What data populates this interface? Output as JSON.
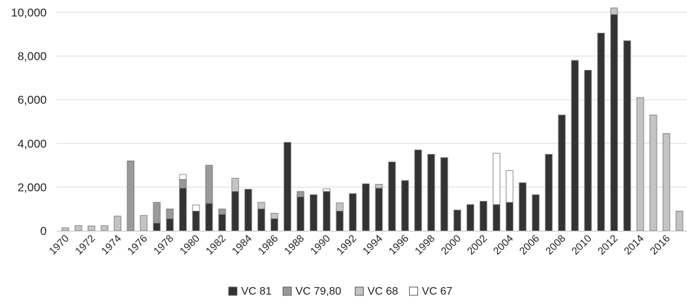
{
  "chart_data": {
    "type": "bar",
    "stacked": true,
    "title": "",
    "xlabel": "",
    "ylabel": "",
    "ylim": [
      0,
      10000
    ],
    "yticks": [
      "0",
      "2,000",
      "4,000",
      "6,000",
      "8,000",
      "10,000"
    ],
    "ytick_values": [
      0,
      2000,
      4000,
      6000,
      8000,
      10000
    ],
    "grid": "horizontal",
    "legend_position": "bottom",
    "categories": [
      1970,
      1971,
      1972,
      1973,
      1974,
      1975,
      1976,
      1977,
      1978,
      1979,
      1980,
      1981,
      1982,
      1983,
      1984,
      1985,
      1986,
      1987,
      1988,
      1989,
      1990,
      1991,
      1992,
      1993,
      1994,
      1995,
      1996,
      1997,
      1998,
      1999,
      2000,
      2001,
      2002,
      2003,
      2004,
      2005,
      2006,
      2007,
      2008,
      2009,
      2010,
      2011,
      2012,
      2013,
      2014,
      2015,
      2016,
      2017
    ],
    "xtick_labels": [
      "1970",
      "1972",
      "1974",
      "1976",
      "1978",
      "1980",
      "1982",
      "1984",
      "1986",
      "1988",
      "1990",
      "1992",
      "1994",
      "1996",
      "1998",
      "2000",
      "2002",
      "2004",
      "2006",
      "2008",
      "2010",
      "2012",
      "2014",
      "2016"
    ],
    "series": [
      {
        "name": "VC 81",
        "color": "#333333",
        "values": [
          0,
          0,
          0,
          0,
          0,
          0,
          0,
          350,
          550,
          1950,
          900,
          1250,
          750,
          1800,
          1900,
          1000,
          550,
          4050,
          1550,
          1650,
          1800,
          900,
          1700,
          2150,
          1950,
          3150,
          2300,
          3700,
          3500,
          3350,
          950,
          1200,
          1350,
          1200,
          1300,
          2200,
          1650,
          3500,
          5300,
          7800,
          7350,
          9050,
          9900,
          8700,
          0,
          0,
          0,
          0
        ]
      },
      {
        "name": "VC 79,80",
        "color": "#9a9a9a",
        "values": [
          0,
          0,
          0,
          0,
          0,
          3200,
          0,
          950,
          450,
          400,
          0,
          1750,
          250,
          0,
          0,
          0,
          0,
          0,
          250,
          0,
          0,
          0,
          0,
          0,
          0,
          0,
          0,
          0,
          0,
          0,
          0,
          0,
          0,
          0,
          0,
          0,
          0,
          0,
          0,
          0,
          0,
          0,
          0,
          0,
          0,
          0,
          0,
          0
        ]
      },
      {
        "name": "VC 68",
        "color": "#c4c4c4",
        "values": [
          130,
          230,
          220,
          230,
          670,
          0,
          700,
          0,
          0,
          0,
          0,
          0,
          0,
          600,
          0,
          300,
          250,
          0,
          0,
          0,
          0,
          380,
          0,
          0,
          180,
          0,
          0,
          0,
          0,
          0,
          0,
          0,
          0,
          0,
          0,
          0,
          0,
          0,
          0,
          0,
          0,
          0,
          300,
          0,
          6100,
          5300,
          4450,
          900
        ]
      },
      {
        "name": "VC 67",
        "color": "#ffffff",
        "values": [
          0,
          0,
          0,
          0,
          0,
          0,
          0,
          0,
          0,
          230,
          280,
          0,
          0,
          0,
          0,
          0,
          0,
          0,
          0,
          0,
          120,
          0,
          0,
          0,
          0,
          0,
          0,
          0,
          0,
          0,
          0,
          0,
          0,
          2350,
          1450,
          0,
          0,
          0,
          0,
          0,
          0,
          0,
          0,
          0,
          0,
          0,
          0,
          0
        ]
      }
    ]
  }
}
